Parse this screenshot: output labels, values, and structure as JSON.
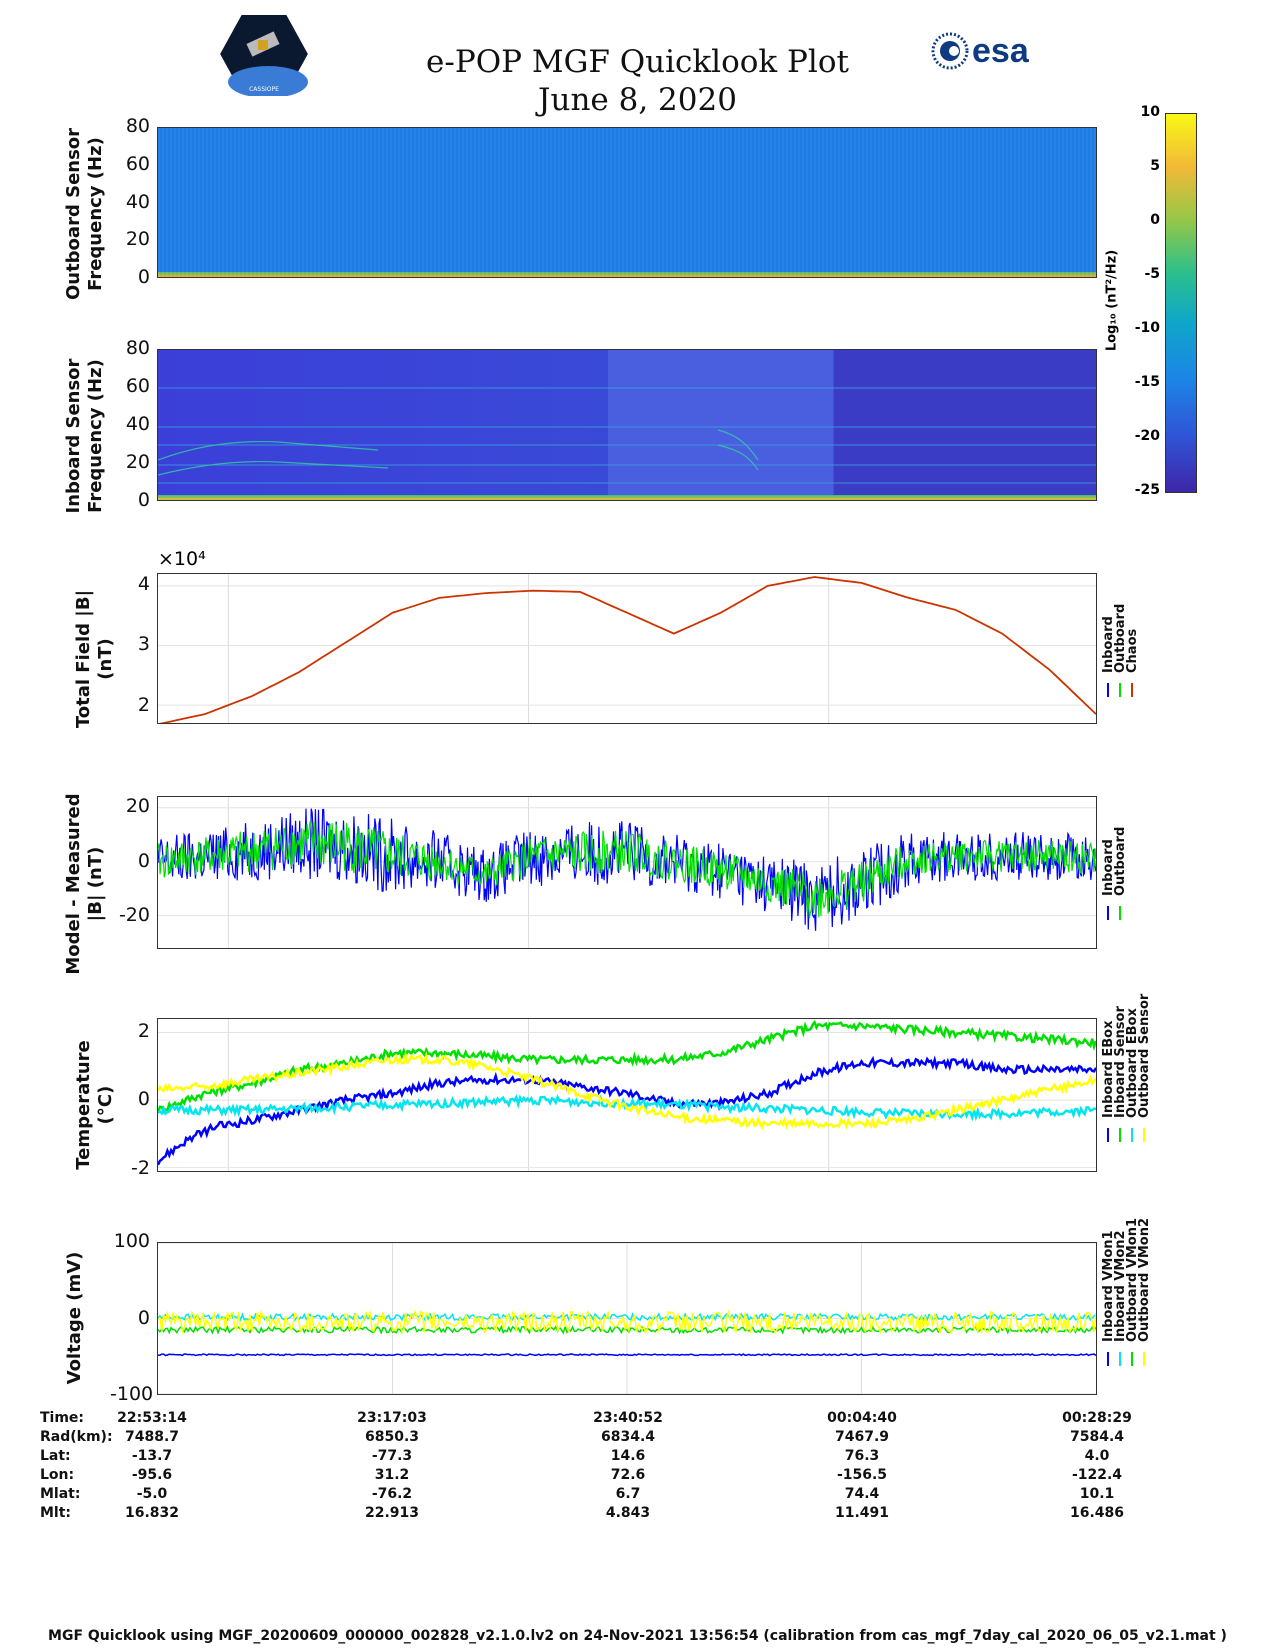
{
  "header": {
    "title": "e-POP MGF Quicklook Plot",
    "date": "June 8, 2020",
    "esa_logo_text": "esa",
    "mission_logo_text": "CASSIOPE"
  },
  "colorbar": {
    "label": "Log₁₀ (nT²/Hz)",
    "ticks": [
      10,
      5,
      0,
      -5,
      -10,
      -15,
      -20,
      -25
    ]
  },
  "chart_data": [
    {
      "type": "heatmap",
      "ylabel": "Outboard Sensor Frequency (Hz)",
      "ylim": [
        0,
        80
      ],
      "yticks": [
        0,
        20,
        40,
        60,
        80
      ],
      "color_range": [
        -25,
        10
      ]
    },
    {
      "type": "heatmap",
      "ylabel": "Inboard Sensor Frequency (Hz)",
      "ylim": [
        0,
        80
      ],
      "yticks": [
        0,
        20,
        40,
        60,
        80
      ],
      "color_range": [
        -25,
        10
      ]
    },
    {
      "type": "line",
      "ylabel": "Total Field |B| (nT)",
      "exponent_label": "×10⁴",
      "ylim": [
        1.7,
        4.2
      ],
      "yticks": [
        2,
        3,
        4
      ],
      "legend": [
        "Inboard",
        "Outboard",
        "Chaos"
      ],
      "grid": true,
      "series": [
        {
          "name": "Chaos",
          "color": "#cc3300",
          "x": [
            0,
            0.05,
            0.1,
            0.15,
            0.2,
            0.25,
            0.3,
            0.35,
            0.4,
            0.45,
            0.5,
            0.55,
            0.6,
            0.65,
            0.7,
            0.75,
            0.8,
            0.85,
            0.9,
            0.95,
            1.0
          ],
          "y": [
            1.68,
            1.85,
            2.15,
            2.55,
            3.05,
            3.55,
            3.8,
            3.88,
            3.92,
            3.9,
            3.55,
            3.2,
            3.55,
            4.0,
            4.15,
            4.05,
            3.8,
            3.6,
            3.2,
            2.6,
            1.85
          ]
        }
      ]
    },
    {
      "type": "line",
      "ylabel": "Model - Measured |B| (nT)",
      "ylim": [
        -32,
        24
      ],
      "yticks": [
        -20,
        0,
        20
      ],
      "legend": [
        "Inboard",
        "Outboard"
      ],
      "grid": true,
      "series": [
        {
          "name": "Inboard",
          "color": "#0000ff",
          "x": [
            0,
            0.05,
            0.1,
            0.15,
            0.2,
            0.25,
            0.3,
            0.35,
            0.4,
            0.45,
            0.5,
            0.55,
            0.6,
            0.65,
            0.7,
            0.75,
            0.8,
            0.85,
            0.9,
            0.95,
            1.0
          ],
          "center": [
            0,
            2,
            4,
            7,
            6,
            2,
            0,
            -5,
            2,
            3,
            4,
            0,
            -3,
            -8,
            -13,
            -8,
            1,
            2,
            2,
            2,
            1
          ],
          "amp": [
            10,
            10,
            11,
            13,
            14,
            14,
            11,
            10,
            11,
            12,
            12,
            11,
            11,
            11,
            14,
            13,
            10,
            9,
            9,
            9,
            9
          ]
        },
        {
          "name": "Outboard",
          "color": "#00e000",
          "x": [
            0,
            0.05,
            0.1,
            0.15,
            0.2,
            0.25,
            0.3,
            0.35,
            0.4,
            0.45,
            0.5,
            0.55,
            0.6,
            0.65,
            0.7,
            0.75,
            0.8,
            0.85,
            0.9,
            0.95,
            1.0
          ],
          "center": [
            0,
            2,
            4,
            7,
            6,
            2,
            0,
            -5,
            2,
            3,
            4,
            0,
            -3,
            -8,
            -13,
            -8,
            1,
            2,
            2,
            2,
            1
          ],
          "amp": [
            7,
            7,
            8,
            9,
            10,
            9,
            7,
            6,
            7,
            8,
            8,
            7,
            7,
            7,
            9,
            8,
            6,
            6,
            6,
            6,
            6
          ]
        }
      ]
    },
    {
      "type": "line",
      "ylabel": "Temperature (°C)",
      "ylim": [
        -2.1,
        2.4
      ],
      "yticks": [
        -2,
        0,
        2
      ],
      "legend": [
        "Inboard EBox",
        "Inboard Sensor",
        "Outboard EBox",
        "Outboard Sensor"
      ],
      "grid": true,
      "series": [
        {
          "name": "Inboard EBox",
          "color": "#0000ff",
          "x": [
            0,
            0.03,
            0.06,
            0.1,
            0.15,
            0.2,
            0.25,
            0.3,
            0.35,
            0.4,
            0.45,
            0.5,
            0.55,
            0.6,
            0.65,
            0.7,
            0.75,
            0.8,
            0.85,
            0.9,
            0.95,
            1.0
          ],
          "y": [
            -1.8,
            -1.2,
            -0.8,
            -0.6,
            -0.3,
            0,
            0.2,
            0.5,
            0.6,
            0.6,
            0.4,
            0.2,
            -0.1,
            -0.1,
            0.2,
            0.8,
            1.1,
            1.1,
            1.1,
            0.9,
            0.9,
            0.9
          ]
        },
        {
          "name": "Inboard Sensor",
          "color": "#00e000",
          "x": [
            0,
            0.05,
            0.1,
            0.15,
            0.2,
            0.25,
            0.3,
            0.35,
            0.4,
            0.45,
            0.5,
            0.55,
            0.6,
            0.65,
            0.7,
            0.75,
            0.8,
            0.85,
            0.9,
            0.95,
            1.0
          ],
          "y": [
            -0.3,
            0.2,
            0.5,
            0.9,
            1.1,
            1.4,
            1.4,
            1.3,
            1.2,
            1.2,
            1.2,
            1.2,
            1.4,
            1.8,
            2.2,
            2.2,
            2.1,
            2.0,
            1.9,
            1.8,
            1.7
          ]
        },
        {
          "name": "Outboard EBox",
          "color": "#00e5ee",
          "x": [
            0,
            0.1,
            0.2,
            0.3,
            0.4,
            0.5,
            0.6,
            0.7,
            0.8,
            0.9,
            1.0
          ],
          "y": [
            -0.3,
            -0.3,
            -0.2,
            -0.1,
            0.0,
            -0.1,
            -0.2,
            -0.3,
            -0.4,
            -0.4,
            -0.3
          ]
        },
        {
          "name": "Outboard Sensor",
          "color": "#ffff00",
          "x": [
            0,
            0.05,
            0.1,
            0.15,
            0.2,
            0.25,
            0.3,
            0.35,
            0.4,
            0.45,
            0.5,
            0.55,
            0.6,
            0.65,
            0.7,
            0.75,
            0.8,
            0.85,
            0.9,
            0.95,
            1.0
          ],
          "y": [
            0.3,
            0.4,
            0.6,
            0.8,
            1.0,
            1.2,
            1.2,
            1.0,
            0.6,
            0.2,
            -0.2,
            -0.5,
            -0.6,
            -0.7,
            -0.7,
            -0.7,
            -0.6,
            -0.3,
            0,
            0.3,
            0.6
          ]
        }
      ]
    },
    {
      "type": "line",
      "ylabel": "Voltage (mV)",
      "ylim": [
        -100,
        100
      ],
      "yticks": [
        -100,
        0,
        100
      ],
      "legend": [
        "Inboard VMon1",
        "Inboard VMon2",
        "Outboard VMon1",
        "Outboard VMon2"
      ],
      "grid": true,
      "series": [
        {
          "name": "Inboard VMon1",
          "color": "#0000ff",
          "x": [
            0,
            1
          ],
          "y": [
            -48,
            -48
          ]
        },
        {
          "name": "Inboard VMon2",
          "color": "#00e5ee",
          "x": [
            0,
            1
          ],
          "y": [
            2,
            2
          ]
        },
        {
          "name": "Outboard VMon1",
          "color": "#00e000",
          "x": [
            0,
            1
          ],
          "y": [
            -15,
            -15
          ]
        },
        {
          "name": "Outboard VMon2",
          "color": "#ffff00",
          "x": [
            0,
            1
          ],
          "y": [
            -5,
            -5
          ]
        }
      ]
    }
  ],
  "orbit_table": {
    "labels": [
      "Time:",
      "Rad(km):",
      "Lat:",
      "Lon:",
      "Mlat:",
      "Mlt:"
    ],
    "columns": [
      [
        "22:53:14",
        "7488.7",
        "-13.7",
        "-95.6",
        "-5.0",
        "16.832"
      ],
      [
        "23:17:03",
        "6850.3",
        "-77.3",
        "31.2",
        "-76.2",
        "22.913"
      ],
      [
        "23:40:52",
        "6834.4",
        "14.6",
        "72.6",
        "6.7",
        "4.843"
      ],
      [
        "00:04:40",
        "7467.9",
        "76.3",
        "-156.5",
        "74.4",
        "11.491"
      ],
      [
        "00:28:29",
        "7584.4",
        "4.0",
        "-122.4",
        "10.1",
        "16.486"
      ]
    ]
  },
  "footer": "MGF Quicklook using MGF_20200609_000000_002828_v2.1.0.lv2 on 24-Nov-2021 13:56:54 (calibration from cas_mgf_7day_cal_2020_06_05_v2.1.mat )"
}
